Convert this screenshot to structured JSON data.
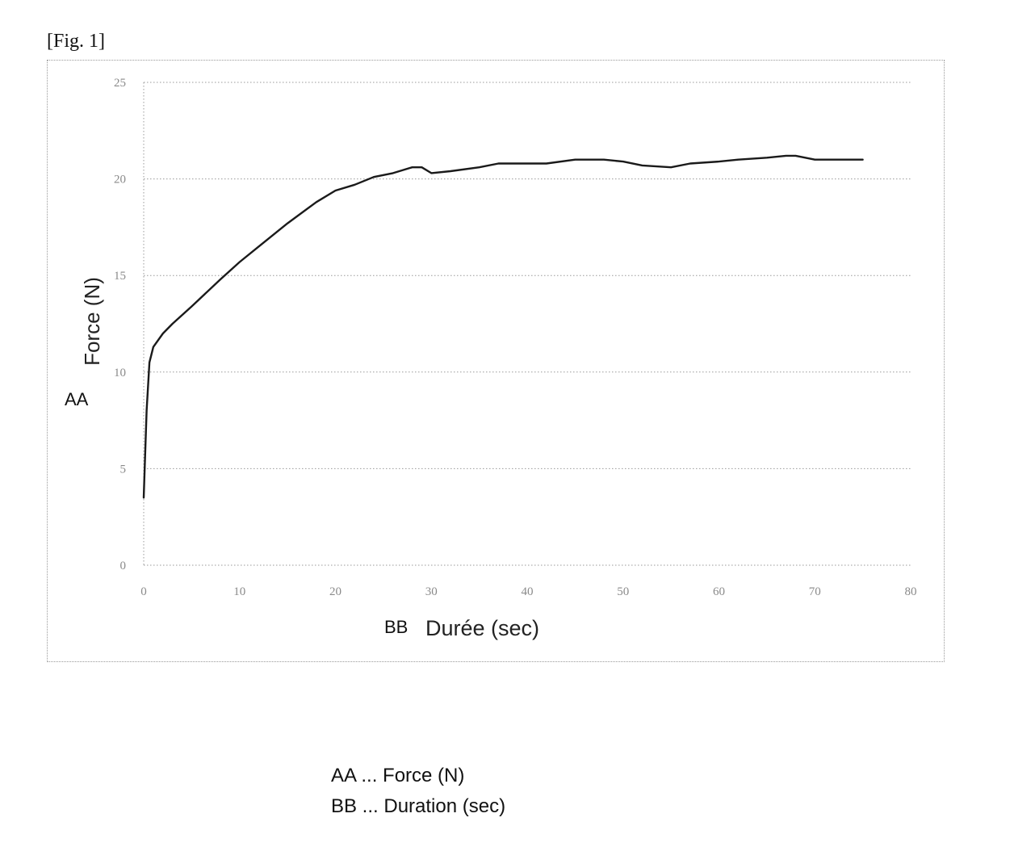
{
  "figure": {
    "label": "[Fig. 1]"
  },
  "chart_data": {
    "type": "line",
    "title": "",
    "xlabel": "Durée (sec)",
    "ylabel": "Force (N)",
    "xlabel_code": "BB",
    "ylabel_code": "AA",
    "xlim": [
      0,
      80
    ],
    "ylim": [
      0,
      25
    ],
    "xticks": [
      0,
      10,
      20,
      30,
      40,
      50,
      60,
      70,
      80
    ],
    "yticks": [
      0,
      5,
      10,
      15,
      20,
      25
    ],
    "grid": "horizontal-dotted",
    "series": [
      {
        "x": [
          0,
          0.3,
          0.6,
          1,
          2,
          3,
          5,
          8,
          10,
          12,
          15,
          18,
          20,
          22,
          24,
          26,
          28,
          29,
          30,
          32,
          35,
          37,
          40,
          42,
          45,
          48,
          50,
          52,
          55,
          57,
          60,
          62,
          65,
          67,
          68,
          70,
          72,
          75
        ],
        "y": [
          3.5,
          8,
          10.5,
          11.3,
          12,
          12.5,
          13.4,
          14.8,
          15.7,
          16.5,
          17.7,
          18.8,
          19.4,
          19.7,
          20.1,
          20.3,
          20.6,
          20.6,
          20.3,
          20.4,
          20.6,
          20.8,
          20.8,
          20.8,
          21.0,
          21.0,
          20.9,
          20.7,
          20.6,
          20.8,
          20.9,
          21.0,
          21.1,
          21.2,
          21.2,
          21.0,
          21.0,
          21.0
        ]
      }
    ]
  },
  "legend": {
    "lines": [
      "AA ... Force (N)",
      "BB ... Duration (sec)"
    ]
  },
  "colors": {
    "line": "#1a1a1a",
    "grid": "#999999",
    "frame": "#9a9a9a"
  }
}
